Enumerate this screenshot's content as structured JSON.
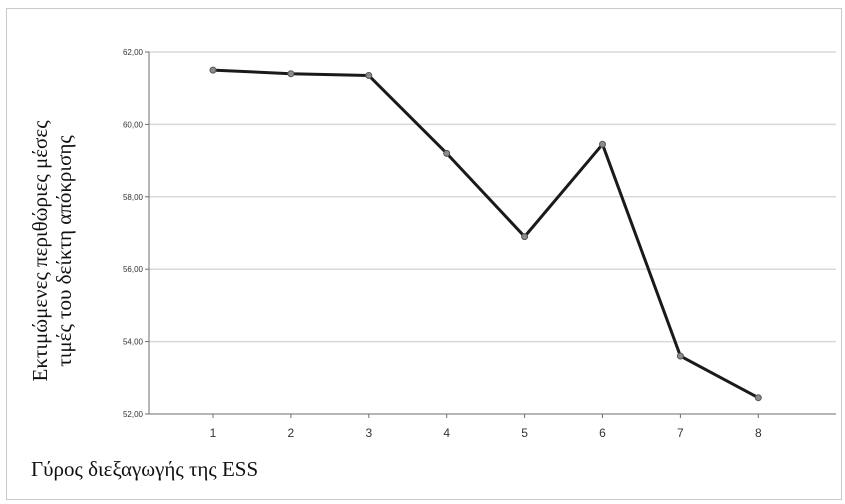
{
  "chart_data": {
    "type": "line",
    "title": "",
    "xlabel": "Γύρος διεξαγωγής της ESS",
    "ylabel_lines": [
      "Εκτιμώμενες περιθώριες μέσες",
      "τιμές του δείκτη απόκρισης"
    ],
    "x": [
      1,
      2,
      3,
      4,
      5,
      6,
      7,
      8
    ],
    "x_tick_labels": [
      "1",
      "2",
      "3",
      "4",
      "5",
      "6",
      "7",
      "8"
    ],
    "y_ticks": [
      52,
      54,
      56,
      58,
      60,
      62
    ],
    "y_tick_labels": [
      "52,00",
      "54,00",
      "56,00",
      "58,00",
      "60,00",
      "62,00"
    ],
    "ylim": [
      52,
      62
    ],
    "grid": "horizontal",
    "series": [
      {
        "values": [
          61.5,
          61.4,
          61.35,
          59.2,
          56.9,
          59.45,
          53.6,
          52.45
        ]
      }
    ]
  },
  "colors": {
    "line": "#1a1a1a",
    "marker_fill": "#8c8c8c",
    "grid": "#d9d9d9",
    "axis": "#6e6e6e"
  }
}
